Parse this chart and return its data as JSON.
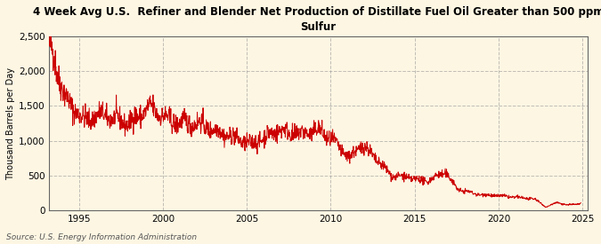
{
  "title_line1": "4 Week Avg U.S.  Refiner and Blender Net Production of Distillate Fuel Oil Greater than 500 ppm",
  "title_line2": "Sulfur",
  "ylabel": "Thousand Barrels per Day",
  "source": "Source: U.S. Energy Information Administration",
  "line_color": "#cc0000",
  "background_color": "#fdf6e3",
  "plot_bg_color": "#fdf6e3",
  "ylim": [
    0,
    2500
  ],
  "yticks": [
    0,
    500,
    1000,
    1500,
    2000,
    2500
  ],
  "ytick_labels": [
    "0",
    "500",
    "1,000",
    "1,500",
    "2,000",
    "2,500"
  ],
  "xlim_start": 1993.2,
  "xlim_end": 2025.3,
  "xticks": [
    1995,
    2000,
    2005,
    2010,
    2015,
    2020,
    2025
  ],
  "grid_color": "#999999",
  "grid_style": "--",
  "grid_alpha": 0.6,
  "grid_linewidth": 0.7
}
